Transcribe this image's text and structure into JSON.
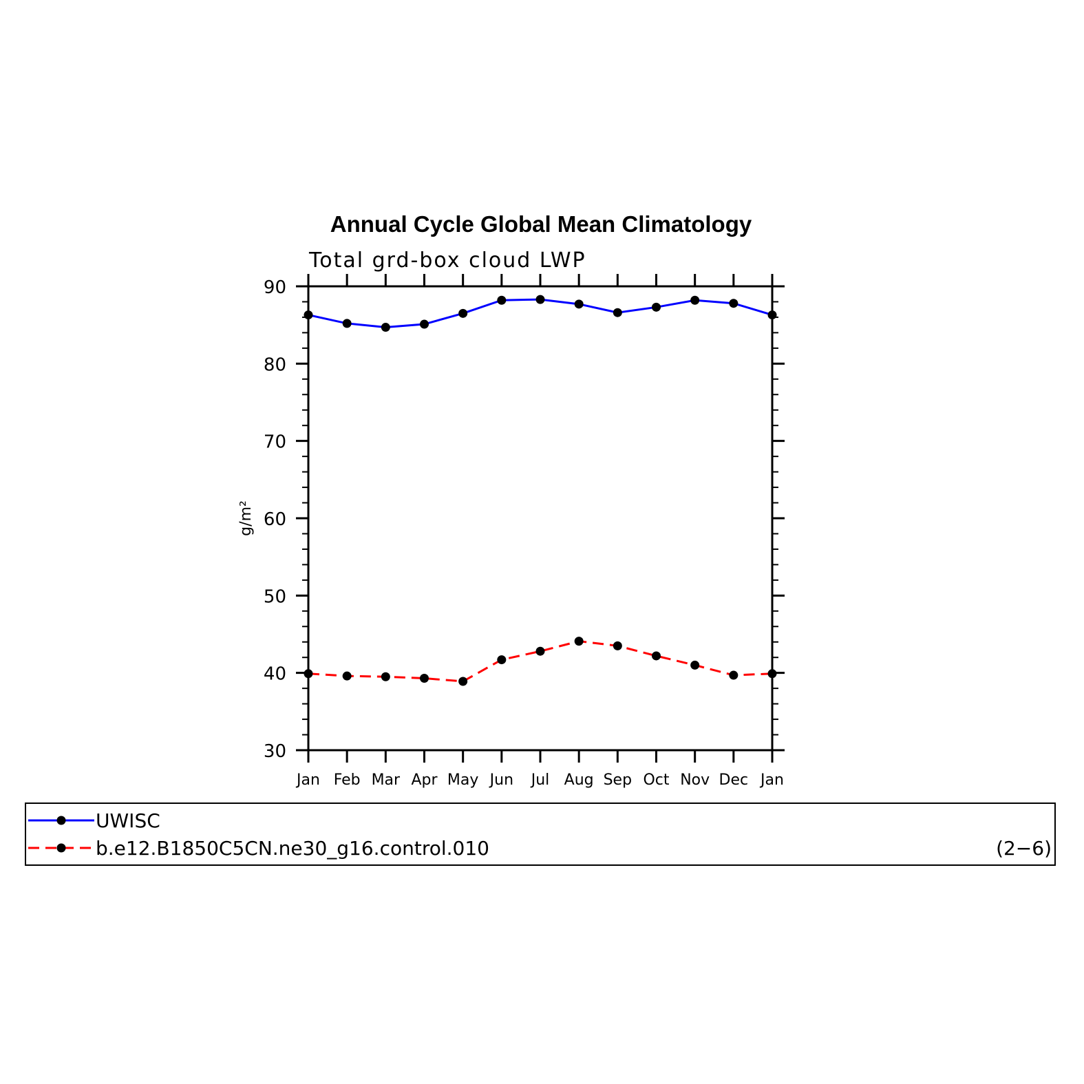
{
  "chart_data": {
    "type": "line",
    "title": "Annual Cycle Global Mean Climatology",
    "subtitle": "Total grd-box cloud LWP",
    "ylabel": "g/m²",
    "xlabel": "",
    "categories": [
      "Jan",
      "Feb",
      "Mar",
      "Apr",
      "May",
      "Jun",
      "Jul",
      "Aug",
      "Sep",
      "Oct",
      "Nov",
      "Dec",
      "Jan"
    ],
    "ylim": [
      30,
      90
    ],
    "yticks": [
      30,
      40,
      50,
      60,
      70,
      80,
      90
    ],
    "grid": false,
    "legend_position": "bottom",
    "panel_label": "(2−6)",
    "series": [
      {
        "name": "UWISC",
        "color": "#0000ff",
        "dashed": false,
        "values": [
          86.3,
          85.2,
          84.7,
          85.1,
          86.5,
          88.2,
          88.3,
          87.7,
          86.6,
          87.3,
          88.2,
          87.8,
          86.3
        ]
      },
      {
        "name": "b.e12.B1850C5CN.ne30_g16.control.010",
        "color": "#ff0000",
        "dashed": true,
        "values": [
          39.9,
          39.6,
          39.5,
          39.3,
          38.9,
          41.7,
          42.8,
          44.1,
          43.5,
          42.2,
          41.0,
          39.7,
          39.9
        ]
      }
    ]
  }
}
